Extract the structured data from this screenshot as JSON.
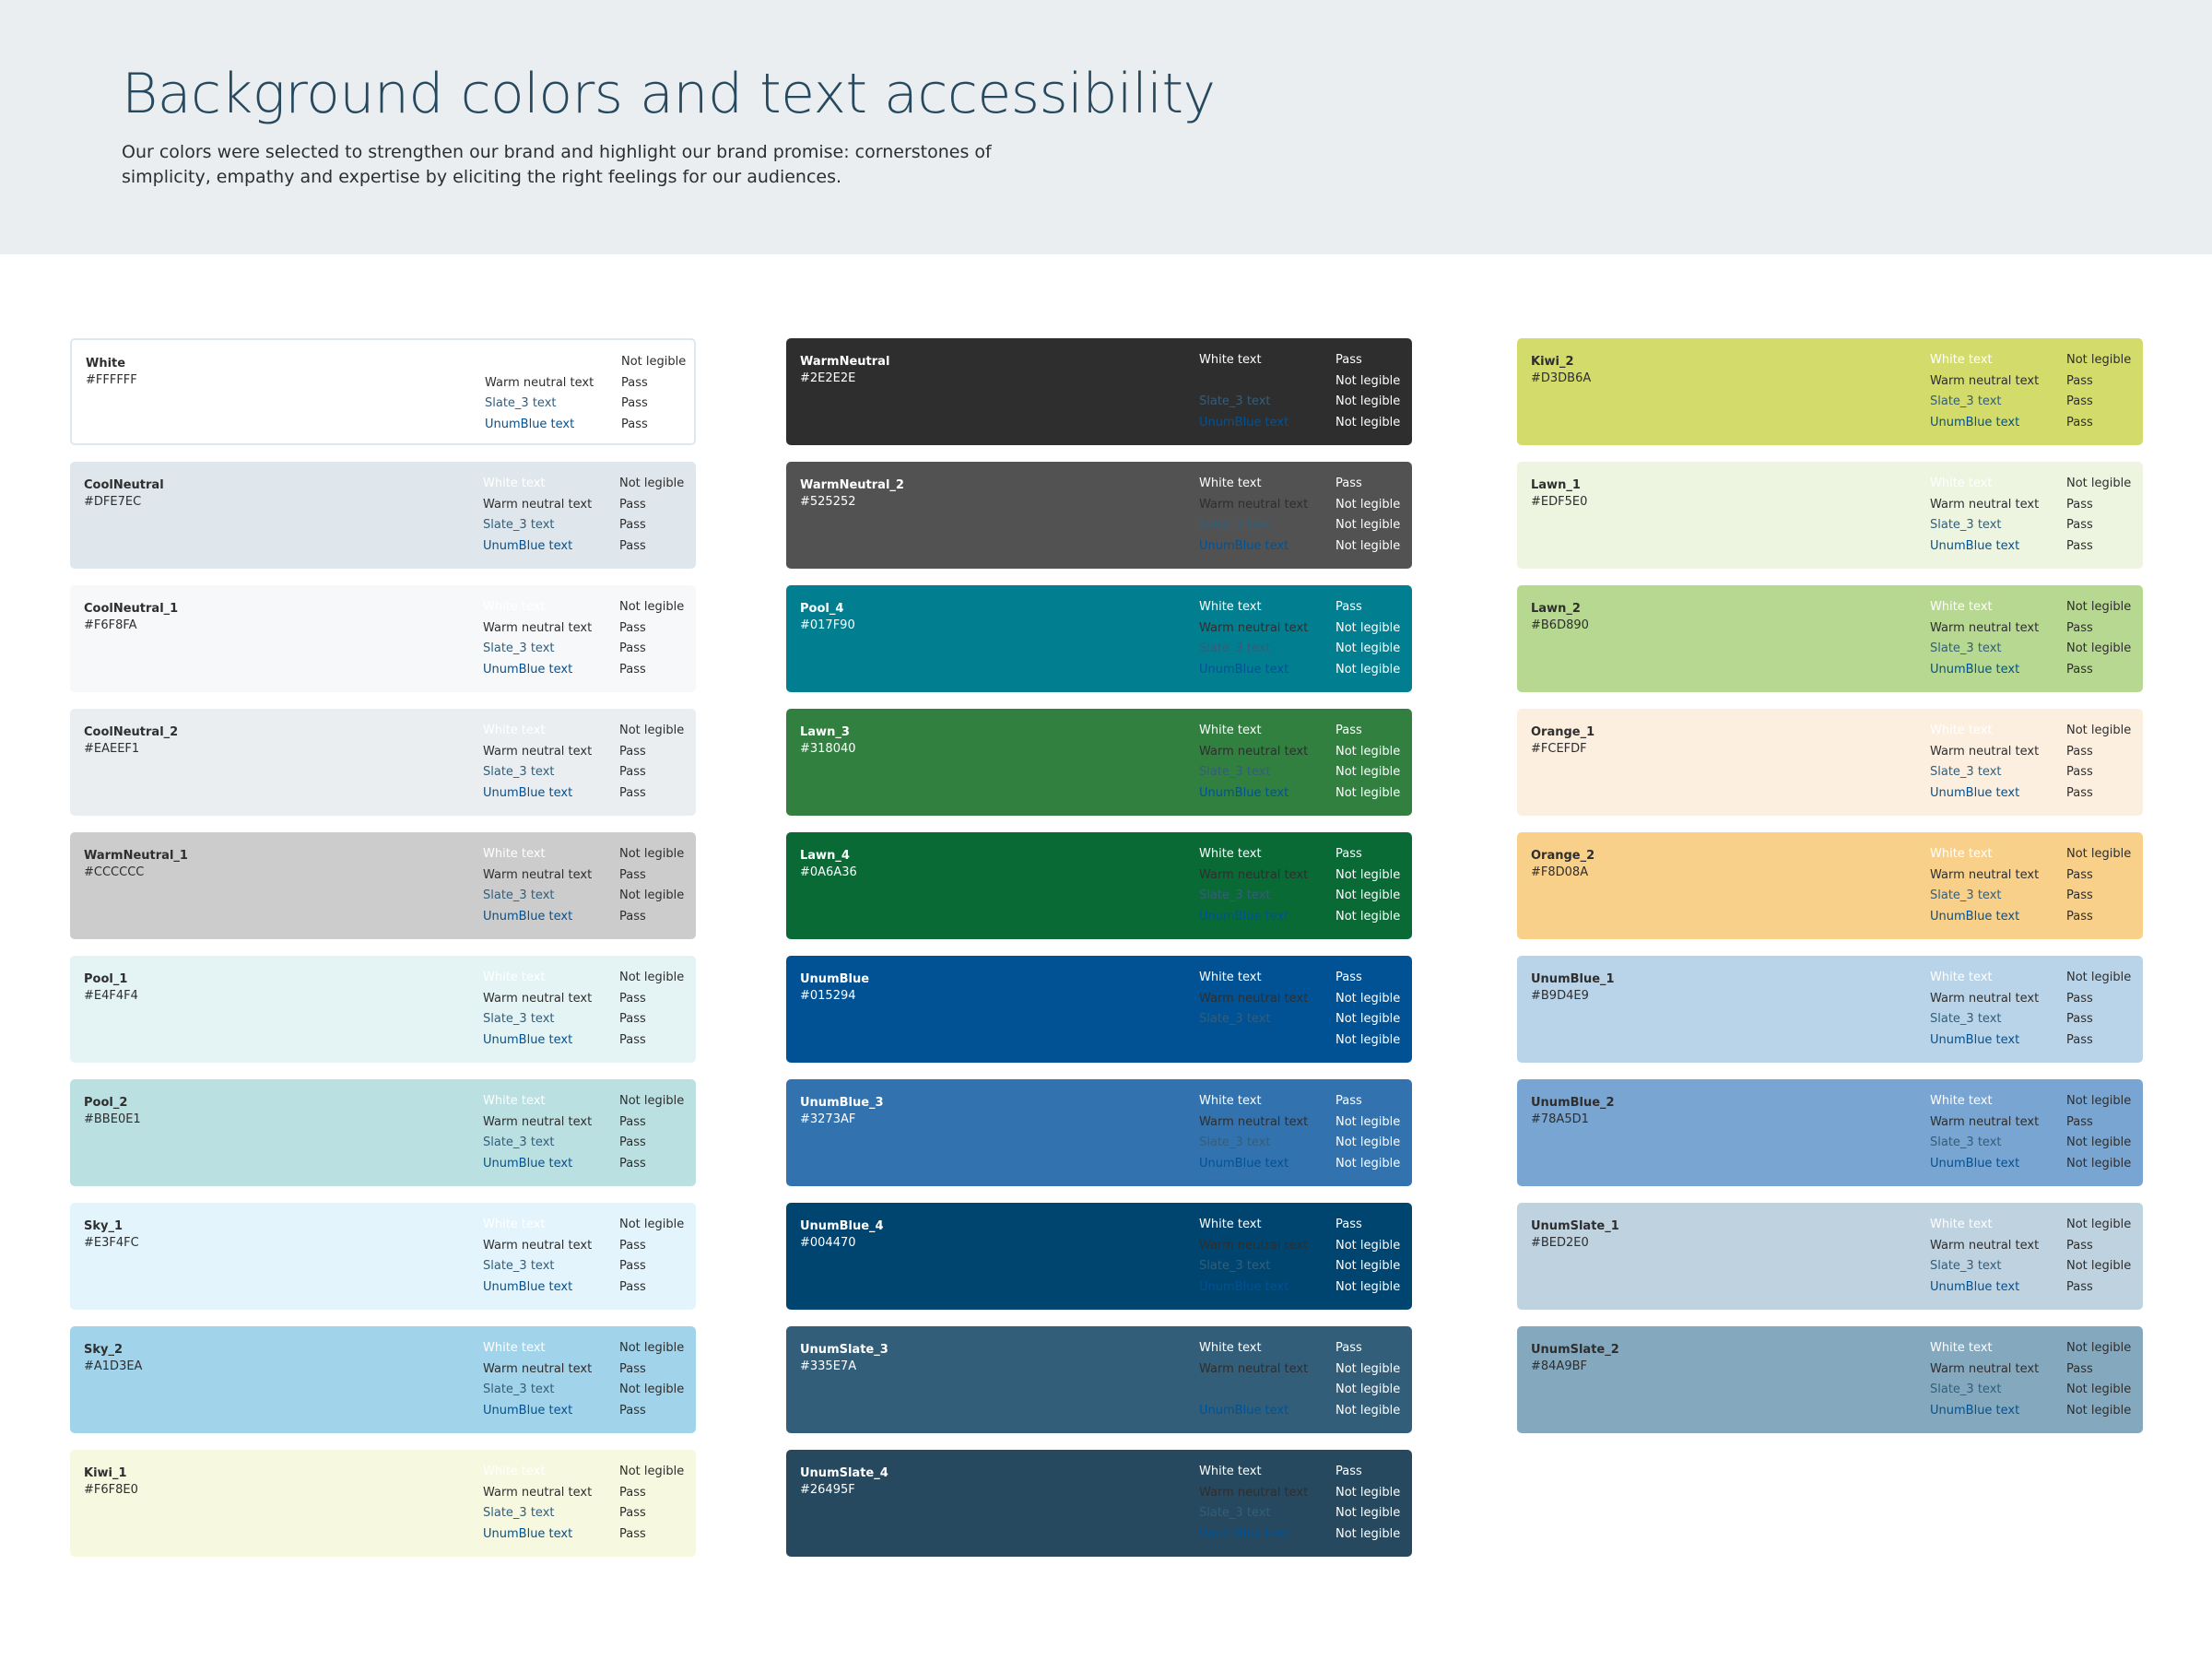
{
  "header": {
    "title": "Background colors and text accessibility",
    "description": "Our colors were selected to strengthen our brand and highlight our brand promise: cornerstones of simplicity, empathy and expertise by eliciting the right feelings for our audiences."
  },
  "text_samples": [
    {
      "label": "White text",
      "color": "#FFFFFF"
    },
    {
      "label": "Warm neutral text",
      "color": "#2E2E2E"
    },
    {
      "label": "Slate_3 text",
      "color": "#335E7A"
    },
    {
      "label": "UnumBlue text",
      "color": "#015294"
    }
  ],
  "columns": [
    [
      {
        "name": "White",
        "hex": "#FFFFFF",
        "bg": "#FFFFFF",
        "label_color": "#2E2E2E",
        "bordered": true,
        "results": [
          "Not legible",
          "Pass",
          "Pass",
          "Pass"
        ]
      },
      {
        "name": "CoolNeutral",
        "hex": "#DFE7EC",
        "bg": "#DFE7EC",
        "label_color": "#2E2E2E",
        "results": [
          "Not legible",
          "Pass",
          "Pass",
          "Pass"
        ]
      },
      {
        "name": "CoolNeutral_1",
        "hex": "#F6F8FA",
        "bg": "#F6F8FA",
        "label_color": "#2E2E2E",
        "results": [
          "Not legible",
          "Pass",
          "Pass",
          "Pass"
        ]
      },
      {
        "name": "CoolNeutral_2",
        "hex": "#EAEEF1",
        "bg": "#EAEEF1",
        "label_color": "#2E2E2E",
        "results": [
          "Not legible",
          "Pass",
          "Pass",
          "Pass"
        ]
      },
      {
        "name": "WarmNeutral_1",
        "hex": "#CCCCCC",
        "bg": "#CCCCCC",
        "label_color": "#2E2E2E",
        "results": [
          "Not legible",
          "Pass",
          "Not legible",
          "Pass"
        ]
      },
      {
        "name": "Pool_1",
        "hex": "#E4F4F4",
        "bg": "#E4F4F4",
        "label_color": "#2E2E2E",
        "results": [
          "Not legible",
          "Pass",
          "Pass",
          "Pass"
        ]
      },
      {
        "name": "Pool_2",
        "hex": "#BBE0E1",
        "bg": "#BBE0E1",
        "label_color": "#2E2E2E",
        "results": [
          "Not legible",
          "Pass",
          "Pass",
          "Pass"
        ]
      },
      {
        "name": "Sky_1",
        "hex": "#E3F4FC",
        "bg": "#E3F4FC",
        "label_color": "#2E2E2E",
        "results": [
          "Not legible",
          "Pass",
          "Pass",
          "Pass"
        ]
      },
      {
        "name": "Sky_2",
        "hex": "#A1D3EA",
        "bg": "#A1D3EA",
        "label_color": "#2E2E2E",
        "results": [
          "Not legible",
          "Pass",
          "Not legible",
          "Pass"
        ]
      },
      {
        "name": "Kiwi_1",
        "hex": "#F6F8E0",
        "bg": "#F6F8E0",
        "label_color": "#2E2E2E",
        "results": [
          "Not legible",
          "Pass",
          "Pass",
          "Pass"
        ]
      }
    ],
    [
      {
        "name": "WarmNeutral",
        "hex": "#2E2E2E",
        "bg": "#2E2E2E",
        "label_color": "#FFFFFF",
        "results": [
          "Pass",
          "Not legible",
          "Not legible",
          "Not legible"
        ]
      },
      {
        "name": "WarmNeutral_2",
        "hex": "#525252",
        "bg": "#525252",
        "label_color": "#FFFFFF",
        "results": [
          "Pass",
          "Not legible",
          "Not legible",
          "Not legible"
        ]
      },
      {
        "name": "Pool_4",
        "hex": "#017F90",
        "bg": "#017F90",
        "label_color": "#FFFFFF",
        "results": [
          "Pass",
          "Not legible",
          "Not legible",
          "Not legible"
        ]
      },
      {
        "name": "Lawn_3",
        "hex": "#318040",
        "bg": "#318040",
        "label_color": "#FFFFFF",
        "results": [
          "Pass",
          "Not legible",
          "Not legible",
          "Not legible"
        ]
      },
      {
        "name": "Lawn_4",
        "hex": "#0A6A36",
        "bg": "#0A6A36",
        "label_color": "#FFFFFF",
        "results": [
          "Pass",
          "Not legible",
          "Not legible",
          "Not legible"
        ]
      },
      {
        "name": "UnumBlue",
        "hex": "#015294",
        "bg": "#015294",
        "label_color": "#FFFFFF",
        "results": [
          "Pass",
          "Not legible",
          "Not legible",
          "Not legible"
        ]
      },
      {
        "name": "UnumBlue_3",
        "hex": "#3273AF",
        "bg": "#3273AF",
        "label_color": "#FFFFFF",
        "results": [
          "Pass",
          "Not legible",
          "Not legible",
          "Not legible"
        ]
      },
      {
        "name": "UnumBlue_4",
        "hex": "#004470",
        "bg": "#004470",
        "label_color": "#FFFFFF",
        "results": [
          "Pass",
          "Not legible",
          "Not legible",
          "Not legible"
        ]
      },
      {
        "name": "UnumSlate_3",
        "hex": "#335E7A",
        "bg": "#335E7A",
        "label_color": "#FFFFFF",
        "results": [
          "Pass",
          "Not legible",
          "Not legible",
          "Not legible"
        ]
      },
      {
        "name": "UnumSlate_4",
        "hex": "#26495F",
        "bg": "#26495F",
        "label_color": "#FFFFFF",
        "results": [
          "Pass",
          "Not legible",
          "Not legible",
          "Not legible"
        ]
      }
    ],
    [
      {
        "name": "Kiwi_2",
        "hex": "#D3DB6A",
        "bg": "#D3DB6A",
        "label_color": "#2E2E2E",
        "results": [
          "Not legible",
          "Pass",
          "Pass",
          "Pass"
        ]
      },
      {
        "name": "Lawn_1",
        "hex": "#EDF5E0",
        "bg": "#EDF5E0",
        "label_color": "#2E2E2E",
        "results": [
          "Not legible",
          "Pass",
          "Pass",
          "Pass"
        ]
      },
      {
        "name": "Lawn_2",
        "hex": "#B6D890",
        "bg": "#B6D890",
        "label_color": "#2E2E2E",
        "results": [
          "Not legible",
          "Pass",
          "Not legible",
          "Pass"
        ]
      },
      {
        "name": "Orange_1",
        "hex": "#FCEFDF",
        "bg": "#FCEFDF",
        "label_color": "#2E2E2E",
        "results": [
          "Not legible",
          "Pass",
          "Pass",
          "Pass"
        ]
      },
      {
        "name": "Orange_2",
        "hex": "#F8D08A",
        "bg": "#F8D08A",
        "label_color": "#2E2E2E",
        "results": [
          "Not legible",
          "Pass",
          "Pass",
          "Pass"
        ]
      },
      {
        "name": "UnumBlue_1",
        "hex": "#B9D4E9",
        "bg": "#B9D4E9",
        "label_color": "#2E2E2E",
        "results": [
          "Not legible",
          "Pass",
          "Pass",
          "Pass"
        ]
      },
      {
        "name": "UnumBlue_2",
        "hex": "#78A5D1",
        "bg": "#78A5D1",
        "label_color": "#2E2E2E",
        "results": [
          "Not legible",
          "Pass",
          "Not legible",
          "Not legible"
        ]
      },
      {
        "name": "UnumSlate_1",
        "hex": "#BED2E0",
        "bg": "#BED2E0",
        "label_color": "#2E2E2E",
        "results": [
          "Not legible",
          "Pass",
          "Not legible",
          "Pass"
        ]
      },
      {
        "name": "UnumSlate_2",
        "hex": "#84A9BF",
        "bg": "#84A9BF",
        "label_color": "#2E2E2E",
        "results": [
          "Not legible",
          "Pass",
          "Not legible",
          "Not legible"
        ]
      }
    ]
  ]
}
